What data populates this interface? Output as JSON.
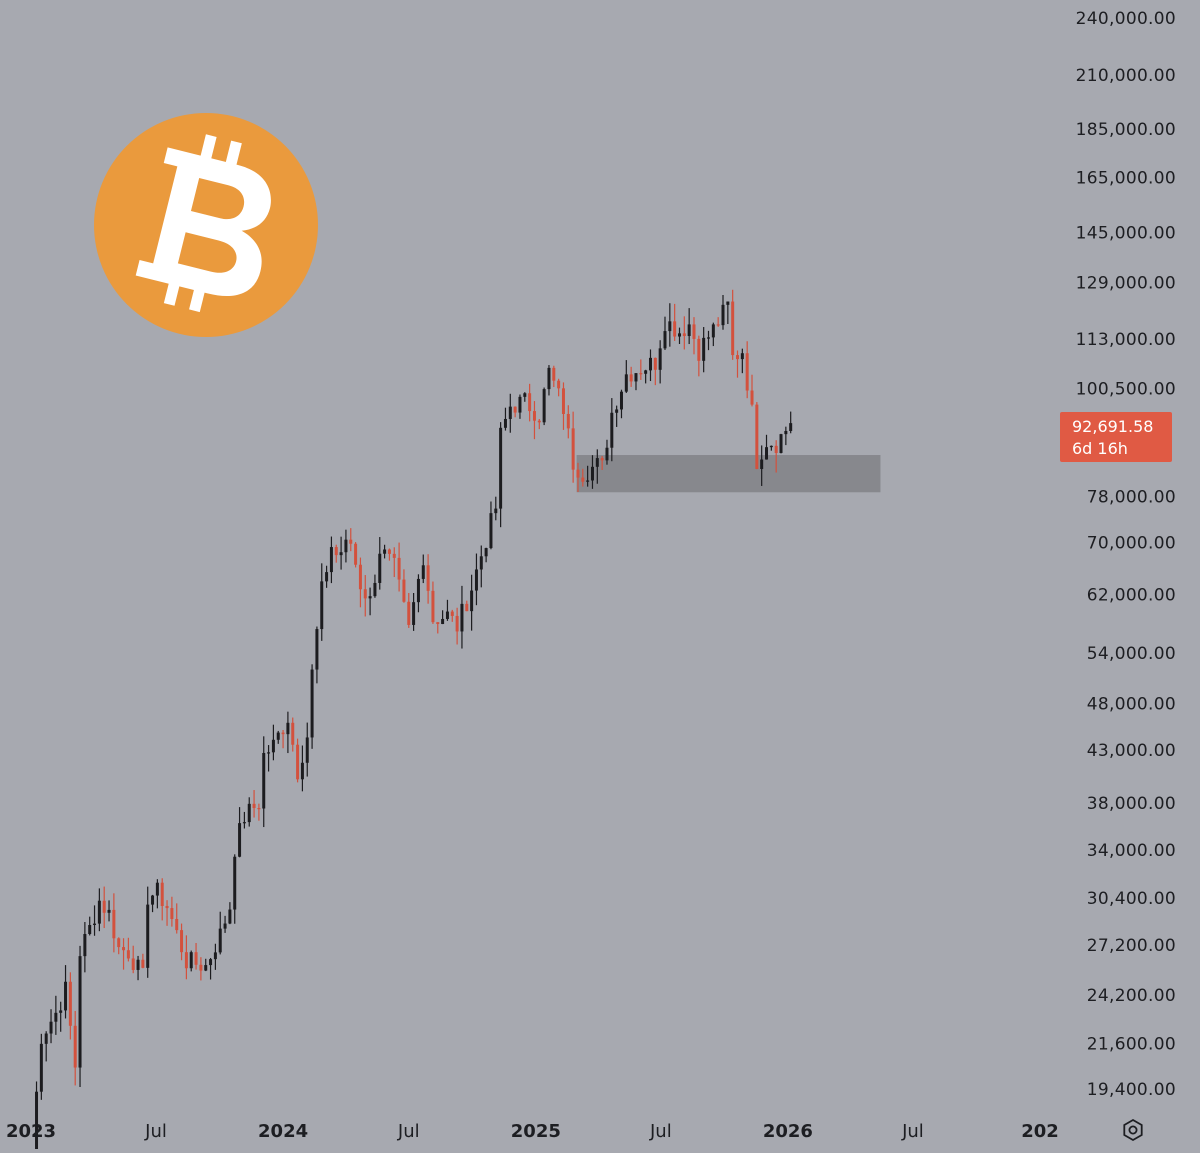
{
  "logo": {
    "name": "Bitcoin",
    "symbol": "B",
    "color": "#ea9a3d"
  },
  "price_label": {
    "price": "92,691.58",
    "countdown": "6d 16h",
    "color": "#e05a44"
  },
  "settings_icon": "gear-icon",
  "colors": {
    "background": "#a7a9b0",
    "up_candle": "#1c1c1f",
    "down_candle": "#d3513d",
    "zone": "#87888d"
  },
  "chart_data": {
    "type": "candlestick",
    "interval": "weekly",
    "scale": "log",
    "title": "",
    "xlabel": "",
    "ylabel": "",
    "y_ticks": [
      "240,000.00",
      "210,000.00",
      "185,000.00",
      "165,000.00",
      "145,000.00",
      "129,000.00",
      "113,000.00",
      "100,500.00",
      "78,000.00",
      "70,000.00",
      "62,000.00",
      "54,000.00",
      "48,000.00",
      "43,000.00",
      "38,000.00",
      "34,000.00",
      "30,400.00",
      "27,200.00",
      "24,200.00",
      "21,600.00",
      "19,400.00"
    ],
    "x_ticks": [
      {
        "label": "2023",
        "year": true
      },
      {
        "label": "Jul",
        "year": false
      },
      {
        "label": "2024",
        "year": true
      },
      {
        "label": "Jul",
        "year": false
      },
      {
        "label": "2025",
        "year": true
      },
      {
        "label": "Jul",
        "year": false
      },
      {
        "label": "2026",
        "year": true
      },
      {
        "label": "Jul",
        "year": false
      },
      {
        "label": "202",
        "year": true
      }
    ],
    "ylim": [
      19000,
      240000
    ],
    "xlim": [
      "2023-01-01",
      "2027-01-01"
    ],
    "support_zone": {
      "low": 78800,
      "high": 86000,
      "x_from": "2025-03-01",
      "x_to": "2026-05-15"
    },
    "last_price": 92691.58,
    "anchors": [
      [
        "2023-01-02",
        16800
      ],
      [
        "2023-01-16",
        22000
      ],
      [
        "2023-02-06",
        23200
      ],
      [
        "2023-02-20",
        24500
      ],
      [
        "2023-03-06",
        20500
      ],
      [
        "2023-03-13",
        26800
      ],
      [
        "2023-03-27",
        28300
      ],
      [
        "2023-04-10",
        30200
      ],
      [
        "2023-04-24",
        29300
      ],
      [
        "2023-05-08",
        27000
      ],
      [
        "2023-05-22",
        26800
      ],
      [
        "2023-06-12",
        25200
      ],
      [
        "2023-06-19",
        30500
      ],
      [
        "2023-07-03",
        30800
      ],
      [
        "2023-07-17",
        29800
      ],
      [
        "2023-08-14",
        26200
      ],
      [
        "2023-09-11",
        25900
      ],
      [
        "2023-10-02",
        27900
      ],
      [
        "2023-10-16",
        29800
      ],
      [
        "2023-10-23",
        34200
      ],
      [
        "2023-11-06",
        36800
      ],
      [
        "2023-11-27",
        38000
      ],
      [
        "2023-12-04",
        42500
      ],
      [
        "2023-12-18",
        43500
      ],
      [
        "2024-01-08",
        46500
      ],
      [
        "2024-01-22",
        41000
      ],
      [
        "2024-02-05",
        44500
      ],
      [
        "2024-02-12",
        51500
      ],
      [
        "2024-02-26",
        62500
      ],
      [
        "2024-03-11",
        69500
      ],
      [
        "2024-03-18",
        68000
      ],
      [
        "2024-04-08",
        70000
      ],
      [
        "2024-04-22",
        63500
      ],
      [
        "2024-05-06",
        61000
      ],
      [
        "2024-05-20",
        69000
      ],
      [
        "2024-06-10",
        66000
      ],
      [
        "2024-07-01",
        57000
      ],
      [
        "2024-07-22",
        68000
      ],
      [
        "2024-08-05",
        58500
      ],
      [
        "2024-08-26",
        59000
      ],
      [
        "2024-09-09",
        57500
      ],
      [
        "2024-09-30",
        63000
      ],
      [
        "2024-10-14",
        68000
      ],
      [
        "2024-11-04",
        76000
      ],
      [
        "2024-11-11",
        90000
      ],
      [
        "2024-11-25",
        96500
      ],
      [
        "2024-12-16",
        97500
      ],
      [
        "2025-01-06",
        94500
      ],
      [
        "2025-01-20",
        104500
      ],
      [
        "2025-02-10",
        96000
      ],
      [
        "2025-02-24",
        84500
      ],
      [
        "2025-03-10",
        82500
      ],
      [
        "2025-03-31",
        84000
      ],
      [
        "2025-04-07",
        83500
      ],
      [
        "2025-04-21",
        95000
      ],
      [
        "2025-05-12",
        104000
      ],
      [
        "2025-06-02",
        105500
      ],
      [
        "2025-06-23",
        107000
      ],
      [
        "2025-07-07",
        118000
      ],
      [
        "2025-07-28",
        115000
      ],
      [
        "2025-08-11",
        117000
      ],
      [
        "2025-08-25",
        110000
      ],
      [
        "2025-09-15",
        115500
      ],
      [
        "2025-10-06",
        122000
      ],
      [
        "2025-10-13",
        108000
      ],
      [
        "2025-10-27",
        110000
      ],
      [
        "2025-11-10",
        95000
      ],
      [
        "2025-11-17",
        85000
      ],
      [
        "2025-12-01",
        89000
      ],
      [
        "2025-12-15",
        88500
      ],
      [
        "2026-01-05",
        92691.58
      ]
    ]
  }
}
